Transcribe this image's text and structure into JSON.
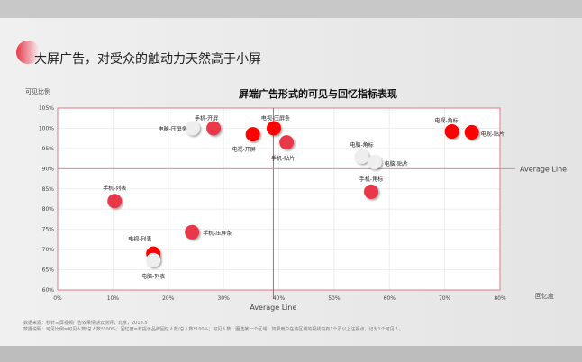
{
  "slide_title": "大屏广告，对受众的触动力天然高于小屏",
  "footnotes": [
    "数据来源：秒针三屏视频广告效果情感云测评，北京，2018.5",
    "数据说明：可见比例=可见人数/总人数*100%；回忆度=有提示品牌回忆人数/总人数*100%；可见人数：圈选某一个区域，如果用户在该区域的视线内有1个及以上注视点，记为1个可见人。"
  ],
  "chart_data": {
    "type": "scatter",
    "title": "屏端广告形式的可见与回忆指标表现",
    "xlabel": "回忆度",
    "ylabel": "可见比例",
    "xlim": [
      0,
      80
    ],
    "ylim": [
      60,
      105
    ],
    "xticks": [
      "0%",
      "10%",
      "20%",
      "30%",
      "40%",
      "50%",
      "60%",
      "70%",
      "80%"
    ],
    "yticks": [
      "60%",
      "65%",
      "70%",
      "75%",
      "80%",
      "85%",
      "90%",
      "95%",
      "100%",
      "105%"
    ],
    "grid": true,
    "average_lines": {
      "x": 39,
      "y": 90,
      "x_label": "Average Line",
      "y_label": "Average Line"
    },
    "colors": {
      "电视": "#ff0000",
      "手机": "#e8394a",
      "电脑": "#eeeeee"
    },
    "points": [
      {
        "label": "电脑-压屏条",
        "x": 24.4,
        "y": 100,
        "group": "电脑"
      },
      {
        "label": "手机-开屏",
        "x": 28.2,
        "y": 100,
        "group": "手机"
      },
      {
        "label": "电视-开屏",
        "x": 35.3,
        "y": 98.5,
        "group": "电视"
      },
      {
        "label": "电视-压屏条",
        "x": 39.1,
        "y": 100,
        "group": "电视"
      },
      {
        "label": "手机-贴片",
        "x": 41.4,
        "y": 96.5,
        "group": "手机"
      },
      {
        "label": "电视-角标",
        "x": 71.3,
        "y": 99.2,
        "group": "电视"
      },
      {
        "label": "电视-贴片",
        "x": 74.9,
        "y": 99,
        "group": "电视"
      },
      {
        "label": "电脑-角标",
        "x": 55,
        "y": 93,
        "group": "电脑"
      },
      {
        "label": "电脑-贴片",
        "x": 57.3,
        "y": 91.6,
        "group": "电脑"
      },
      {
        "label": "手机-角标",
        "x": 56.7,
        "y": 84.3,
        "group": "手机"
      },
      {
        "label": "手机-列表",
        "x": 10.3,
        "y": 82,
        "group": "手机"
      },
      {
        "label": "手机-压屏条",
        "x": 24.3,
        "y": 74.3,
        "group": "手机"
      },
      {
        "label": "电视-列表",
        "x": 17.3,
        "y": 69,
        "group": "电视"
      },
      {
        "label": "电脑-列表",
        "x": 17.3,
        "y": 67.4,
        "group": "电脑"
      }
    ]
  }
}
